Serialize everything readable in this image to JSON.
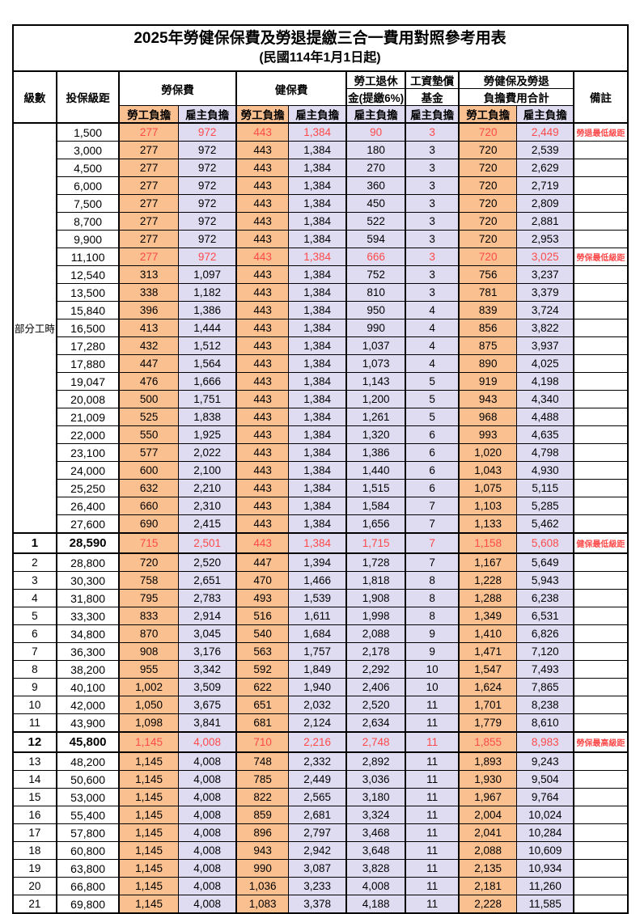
{
  "title": "2025年勞健保保費及勞退提繳三合一費用對照參考用表",
  "subtitle": "(民國114年1月1日起)",
  "header": {
    "level": "級數",
    "salary_bracket": "投保級距",
    "labor_insurance": "勞保費",
    "health_insurance": "健保費",
    "pension_line1": "勞工退休",
    "pension_line2": "金(提繳6%)",
    "wage_fund_line1": "工資墊償",
    "wage_fund_line2": "基金",
    "total_line1": "勞健保及勞退",
    "total_line2": "負擔費用合計",
    "remark": "備註",
    "employee_burden": "勞工負擔",
    "employer_burden": "雇主負擔"
  },
  "part_time_label": "部分工時",
  "colors": {
    "employee_bg": "#FAC090",
    "employer_bg": "#DFDCF2",
    "highlight_red": "#FF4A4A",
    "border": "#000000"
  },
  "rows": [
    {
      "level": null,
      "salary": "1,500",
      "values": [
        "277",
        "972",
        "443",
        "1,384",
        "90",
        "3",
        "720",
        "2,449"
      ],
      "remark": "勞退最低級距",
      "red": true,
      "special": false
    },
    {
      "level": null,
      "salary": "3,000",
      "values": [
        "277",
        "972",
        "443",
        "1,384",
        "180",
        "3",
        "720",
        "2,539"
      ],
      "remark": "",
      "red": false,
      "special": false
    },
    {
      "level": null,
      "salary": "4,500",
      "values": [
        "277",
        "972",
        "443",
        "1,384",
        "270",
        "3",
        "720",
        "2,629"
      ],
      "remark": "",
      "red": false,
      "special": false
    },
    {
      "level": null,
      "salary": "6,000",
      "values": [
        "277",
        "972",
        "443",
        "1,384",
        "360",
        "3",
        "720",
        "2,719"
      ],
      "remark": "",
      "red": false,
      "special": false
    },
    {
      "level": null,
      "salary": "7,500",
      "values": [
        "277",
        "972",
        "443",
        "1,384",
        "450",
        "3",
        "720",
        "2,809"
      ],
      "remark": "",
      "red": false,
      "special": false
    },
    {
      "level": null,
      "salary": "8,700",
      "values": [
        "277",
        "972",
        "443",
        "1,384",
        "522",
        "3",
        "720",
        "2,881"
      ],
      "remark": "",
      "red": false,
      "special": false
    },
    {
      "level": null,
      "salary": "9,900",
      "values": [
        "277",
        "972",
        "443",
        "1,384",
        "594",
        "3",
        "720",
        "2,953"
      ],
      "remark": "",
      "red": false,
      "special": false
    },
    {
      "level": null,
      "salary": "11,100",
      "values": [
        "277",
        "972",
        "443",
        "1,384",
        "666",
        "3",
        "720",
        "3,025"
      ],
      "remark": "勞保最低級距",
      "red": true,
      "special": false
    },
    {
      "level": null,
      "salary": "12,540",
      "values": [
        "313",
        "1,097",
        "443",
        "1,384",
        "752",
        "3",
        "756",
        "3,237"
      ],
      "remark": "",
      "red": false,
      "special": false
    },
    {
      "level": null,
      "salary": "13,500",
      "values": [
        "338",
        "1,182",
        "443",
        "1,384",
        "810",
        "3",
        "781",
        "3,379"
      ],
      "remark": "",
      "red": false,
      "special": false
    },
    {
      "level": null,
      "salary": "15,840",
      "values": [
        "396",
        "1,386",
        "443",
        "1,384",
        "950",
        "4",
        "839",
        "3,724"
      ],
      "remark": "",
      "red": false,
      "special": false
    },
    {
      "level": null,
      "salary": "16,500",
      "values": [
        "413",
        "1,444",
        "443",
        "1,384",
        "990",
        "4",
        "856",
        "3,822"
      ],
      "remark": "",
      "red": false,
      "special": false
    },
    {
      "level": null,
      "salary": "17,280",
      "values": [
        "432",
        "1,512",
        "443",
        "1,384",
        "1,037",
        "4",
        "875",
        "3,937"
      ],
      "remark": "",
      "red": false,
      "special": false
    },
    {
      "level": null,
      "salary": "17,880",
      "values": [
        "447",
        "1,564",
        "443",
        "1,384",
        "1,073",
        "4",
        "890",
        "4,025"
      ],
      "remark": "",
      "red": false,
      "special": false
    },
    {
      "level": null,
      "salary": "19,047",
      "values": [
        "476",
        "1,666",
        "443",
        "1,384",
        "1,143",
        "5",
        "919",
        "4,198"
      ],
      "remark": "",
      "red": false,
      "special": false
    },
    {
      "level": null,
      "salary": "20,008",
      "values": [
        "500",
        "1,751",
        "443",
        "1,384",
        "1,200",
        "5",
        "943",
        "4,340"
      ],
      "remark": "",
      "red": false,
      "special": false
    },
    {
      "level": null,
      "salary": "21,009",
      "values": [
        "525",
        "1,838",
        "443",
        "1,384",
        "1,261",
        "5",
        "968",
        "4,488"
      ],
      "remark": "",
      "red": false,
      "special": false
    },
    {
      "level": null,
      "salary": "22,000",
      "values": [
        "550",
        "1,925",
        "443",
        "1,384",
        "1,320",
        "6",
        "993",
        "4,635"
      ],
      "remark": "",
      "red": false,
      "special": false
    },
    {
      "level": null,
      "salary": "23,100",
      "values": [
        "577",
        "2,022",
        "443",
        "1,384",
        "1,386",
        "6",
        "1,020",
        "4,798"
      ],
      "remark": "",
      "red": false,
      "special": false
    },
    {
      "level": null,
      "salary": "24,000",
      "values": [
        "600",
        "2,100",
        "443",
        "1,384",
        "1,440",
        "6",
        "1,043",
        "4,930"
      ],
      "remark": "",
      "red": false,
      "special": false
    },
    {
      "level": null,
      "salary": "25,250",
      "values": [
        "632",
        "2,210",
        "443",
        "1,384",
        "1,515",
        "6",
        "1,075",
        "5,115"
      ],
      "remark": "",
      "red": false,
      "special": false
    },
    {
      "level": null,
      "salary": "26,400",
      "values": [
        "660",
        "2,310",
        "443",
        "1,384",
        "1,584",
        "7",
        "1,103",
        "5,285"
      ],
      "remark": "",
      "red": false,
      "special": false
    },
    {
      "level": null,
      "salary": "27,600",
      "values": [
        "690",
        "2,415",
        "443",
        "1,384",
        "1,656",
        "7",
        "1,133",
        "5,462"
      ],
      "remark": "",
      "red": false,
      "special": false
    },
    {
      "level": "1",
      "salary": "28,590",
      "values": [
        "715",
        "2,501",
        "443",
        "1,384",
        "1,715",
        "7",
        "1,158",
        "5,608"
      ],
      "remark": "健保最低級距",
      "red": true,
      "special": true
    },
    {
      "level": "2",
      "salary": "28,800",
      "values": [
        "720",
        "2,520",
        "447",
        "1,394",
        "1,728",
        "7",
        "1,167",
        "5,649"
      ],
      "remark": "",
      "red": false,
      "special": false
    },
    {
      "level": "3",
      "salary": "30,300",
      "values": [
        "758",
        "2,651",
        "470",
        "1,466",
        "1,818",
        "8",
        "1,228",
        "5,943"
      ],
      "remark": "",
      "red": false,
      "special": false
    },
    {
      "level": "4",
      "salary": "31,800",
      "values": [
        "795",
        "2,783",
        "493",
        "1,539",
        "1,908",
        "8",
        "1,288",
        "6,238"
      ],
      "remark": "",
      "red": false,
      "special": false
    },
    {
      "level": "5",
      "salary": "33,300",
      "values": [
        "833",
        "2,914",
        "516",
        "1,611",
        "1,998",
        "8",
        "1,349",
        "6,531"
      ],
      "remark": "",
      "red": false,
      "special": false
    },
    {
      "level": "6",
      "salary": "34,800",
      "values": [
        "870",
        "3,045",
        "540",
        "1,684",
        "2,088",
        "9",
        "1,410",
        "6,826"
      ],
      "remark": "",
      "red": false,
      "special": false
    },
    {
      "level": "7",
      "salary": "36,300",
      "values": [
        "908",
        "3,176",
        "563",
        "1,757",
        "2,178",
        "9",
        "1,471",
        "7,120"
      ],
      "remark": "",
      "red": false,
      "special": false
    },
    {
      "level": "8",
      "salary": "38,200",
      "values": [
        "955",
        "3,342",
        "592",
        "1,849",
        "2,292",
        "10",
        "1,547",
        "7,493"
      ],
      "remark": "",
      "red": false,
      "special": false
    },
    {
      "level": "9",
      "salary": "40,100",
      "values": [
        "1,002",
        "3,509",
        "622",
        "1,940",
        "2,406",
        "10",
        "1,624",
        "7,865"
      ],
      "remark": "",
      "red": false,
      "special": false
    },
    {
      "level": "10",
      "salary": "42,000",
      "values": [
        "1,050",
        "3,675",
        "651",
        "2,032",
        "2,520",
        "11",
        "1,701",
        "8,238"
      ],
      "remark": "",
      "red": false,
      "special": false
    },
    {
      "level": "11",
      "salary": "43,900",
      "values": [
        "1,098",
        "3,841",
        "681",
        "2,124",
        "2,634",
        "11",
        "1,779",
        "8,610"
      ],
      "remark": "",
      "red": false,
      "special": false
    },
    {
      "level": "12",
      "salary": "45,800",
      "values": [
        "1,145",
        "4,008",
        "710",
        "2,216",
        "2,748",
        "11",
        "1,855",
        "8,983"
      ],
      "remark": "勞保最高級距",
      "red": true,
      "special": true
    },
    {
      "level": "13",
      "salary": "48,200",
      "values": [
        "1,145",
        "4,008",
        "748",
        "2,332",
        "2,892",
        "11",
        "1,893",
        "9,243"
      ],
      "remark": "",
      "red": false,
      "special": false
    },
    {
      "level": "14",
      "salary": "50,600",
      "values": [
        "1,145",
        "4,008",
        "785",
        "2,449",
        "3,036",
        "11",
        "1,930",
        "9,504"
      ],
      "remark": "",
      "red": false,
      "special": false
    },
    {
      "level": "15",
      "salary": "53,000",
      "values": [
        "1,145",
        "4,008",
        "822",
        "2,565",
        "3,180",
        "11",
        "1,967",
        "9,764"
      ],
      "remark": "",
      "red": false,
      "special": false
    },
    {
      "level": "16",
      "salary": "55,400",
      "values": [
        "1,145",
        "4,008",
        "859",
        "2,681",
        "3,324",
        "11",
        "2,004",
        "10,024"
      ],
      "remark": "",
      "red": false,
      "special": false
    },
    {
      "level": "17",
      "salary": "57,800",
      "values": [
        "1,145",
        "4,008",
        "896",
        "2,797",
        "3,468",
        "11",
        "2,041",
        "10,284"
      ],
      "remark": "",
      "red": false,
      "special": false
    },
    {
      "level": "18",
      "salary": "60,800",
      "values": [
        "1,145",
        "4,008",
        "943",
        "2,942",
        "3,648",
        "11",
        "2,088",
        "10,609"
      ],
      "remark": "",
      "red": false,
      "special": false
    },
    {
      "level": "19",
      "salary": "63,800",
      "values": [
        "1,145",
        "4,008",
        "990",
        "3,087",
        "3,828",
        "11",
        "2,135",
        "10,934"
      ],
      "remark": "",
      "red": false,
      "special": false
    },
    {
      "level": "20",
      "salary": "66,800",
      "values": [
        "1,145",
        "4,008",
        "1,036",
        "3,233",
        "4,008",
        "11",
        "2,181",
        "11,260"
      ],
      "remark": "",
      "red": false,
      "special": false
    },
    {
      "level": "21",
      "salary": "69,800",
      "values": [
        "1,145",
        "4,008",
        "1,083",
        "3,378",
        "4,188",
        "11",
        "2,228",
        "11,585"
      ],
      "remark": "",
      "red": false,
      "special": false
    }
  ],
  "value_column_styles": [
    "emp",
    "er",
    "emp",
    "er",
    "er",
    "er",
    "emp",
    "er"
  ],
  "part_time_row_count": 23
}
